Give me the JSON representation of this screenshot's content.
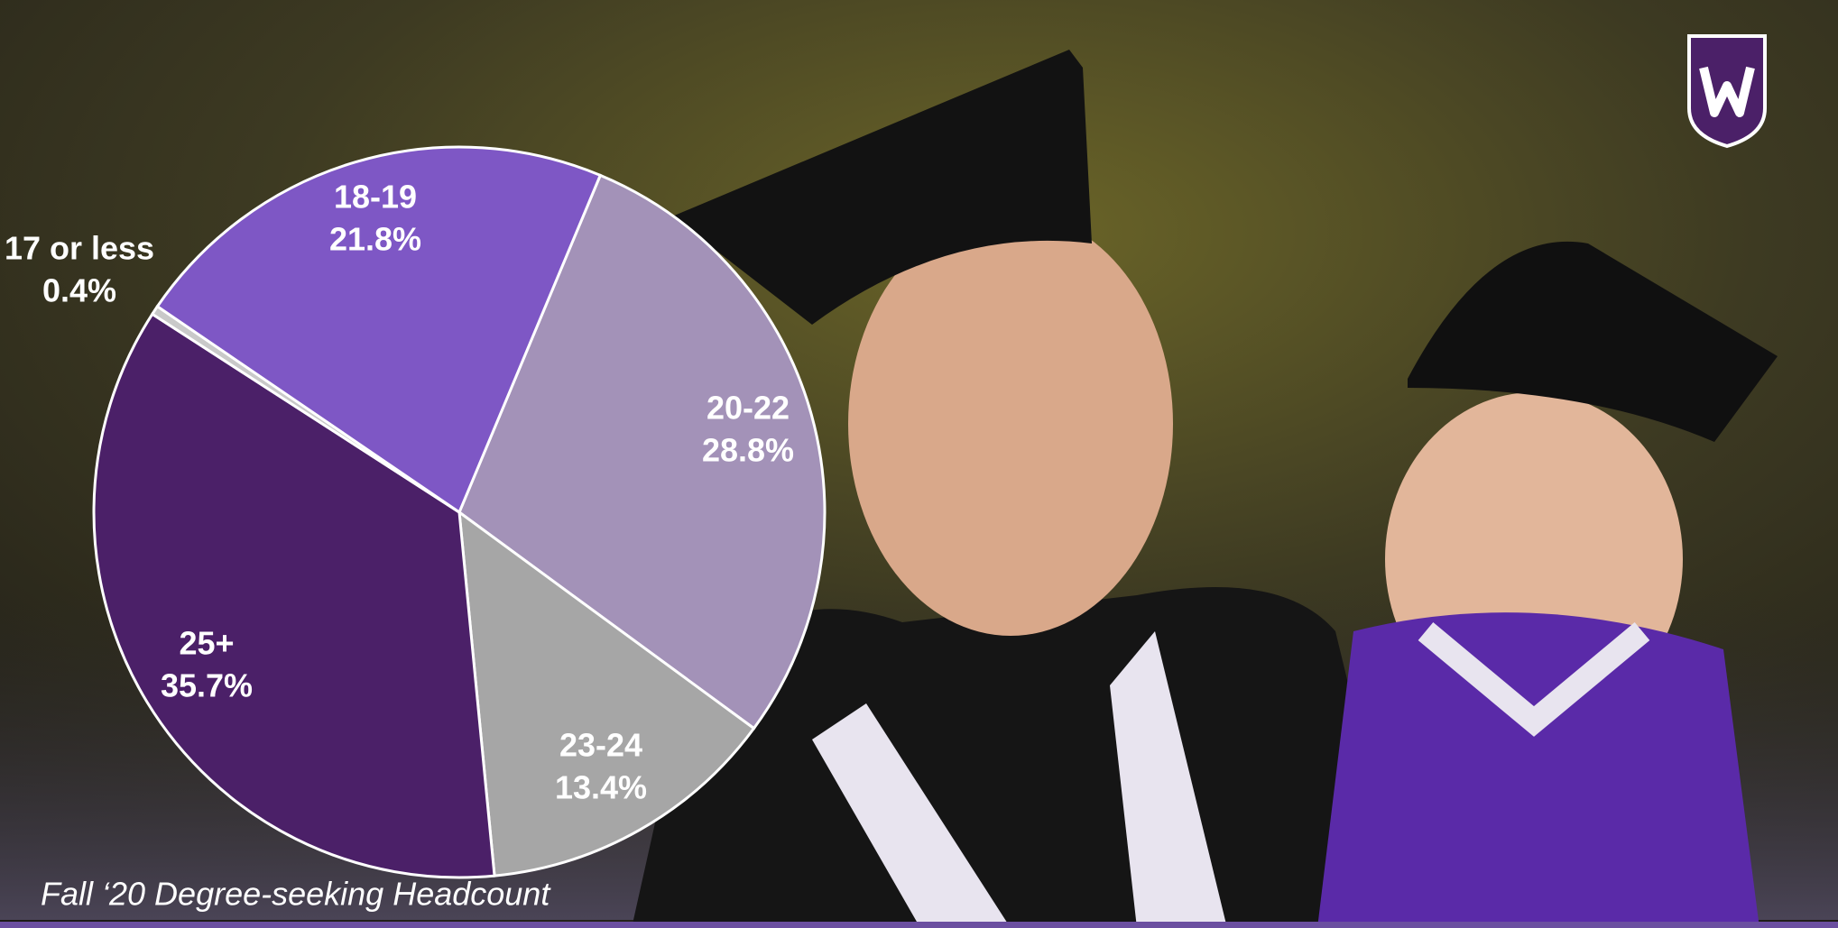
{
  "chart_data": {
    "type": "pie",
    "title": "Fall ‘20 Degree-seeking Headcount",
    "categories": [
      "20-22",
      "23-24",
      "25+",
      "17 or less",
      "18-19"
    ],
    "values": [
      28.8,
      13.4,
      35.7,
      0.4,
      21.8
    ],
    "value_labels": [
      "28.8%",
      "13.4%",
      "35.7%",
      "0.4%",
      "21.8%"
    ],
    "colors": [
      "#a392b8",
      "#a6a6a6",
      "#4b2068",
      "#c9c9c9",
      "#7e57c5"
    ]
  }
}
